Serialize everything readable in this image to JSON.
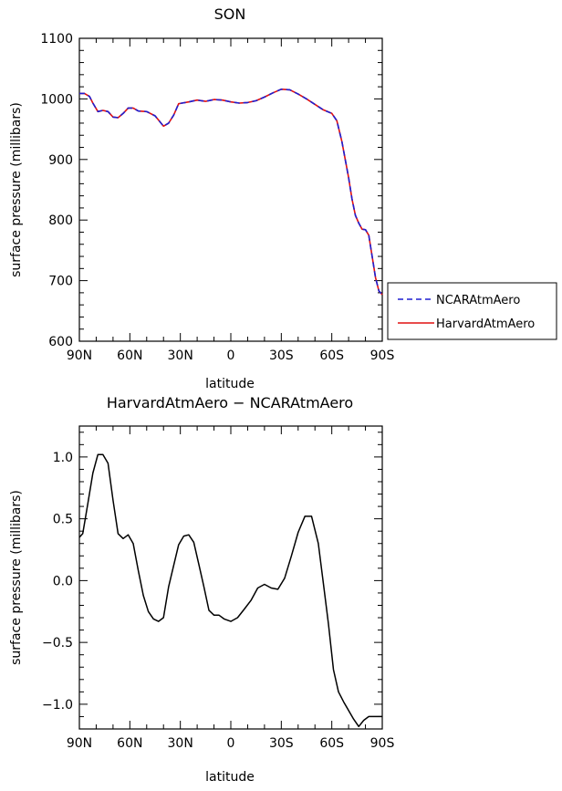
{
  "chart_data": [
    {
      "type": "line",
      "title": "SON",
      "xlabel": "latitude",
      "ylabel": "surface pressure (millibars)",
      "xlim": [
        90,
        -90
      ],
      "ylim": [
        600,
        1100
      ],
      "x_ticks": [
        90,
        60,
        30,
        0,
        -30,
        -60,
        -90
      ],
      "x_tick_labels": [
        "90N",
        "60N",
        "30N",
        "0",
        "30S",
        "60S",
        "90S"
      ],
      "y_ticks": [
        600,
        700,
        800,
        900,
        1000,
        1100
      ],
      "y_tick_labels": [
        "600",
        "700",
        "800",
        "900",
        "1000",
        "1100"
      ],
      "grid": false,
      "legend_position": "right",
      "legend": [
        {
          "name": "NCARAtmAero",
          "color": "#1f1fd0",
          "dash": true
        },
        {
          "name": "HarvardAtmAero",
          "color": "#e01010",
          "dash": false
        }
      ],
      "x": [
        90,
        87,
        84,
        82,
        79,
        76,
        73,
        70,
        67,
        64,
        61,
        58,
        55,
        50,
        45,
        40,
        37,
        34,
        31,
        29,
        25,
        20,
        15,
        10,
        5,
        0,
        -5,
        -10,
        -15,
        -20,
        -25,
        -30,
        -35,
        -40,
        -45,
        -50,
        -55,
        -60,
        -63,
        -66,
        -68,
        -70,
        -72,
        -74,
        -76,
        -78,
        -80,
        -82,
        -84,
        -86,
        -88,
        -90
      ],
      "series": [
        {
          "values": [
            1009,
            1009,
            1004,
            993,
            979,
            981,
            979,
            970,
            969,
            976,
            985,
            985,
            980,
            979,
            972,
            955,
            960,
            973,
            992,
            993,
            995,
            998,
            996,
            999,
            998,
            995,
            993,
            994,
            997,
            1003,
            1010,
            1016,
            1015,
            1008,
            1000,
            991,
            982,
            976,
            964,
            930,
            900,
            870,
            835,
            808,
            795,
            785,
            784,
            775,
            740,
            705,
            683,
            677
          ]
        },
        {
          "values": [
            1009,
            1009,
            1004,
            993,
            979,
            981,
            979,
            970,
            969,
            976,
            985,
            985,
            980,
            979,
            972,
            955,
            960,
            973,
            992,
            993,
            995,
            998,
            996,
            999,
            998,
            995,
            993,
            994,
            997,
            1003,
            1010,
            1016,
            1015,
            1008,
            1000,
            991,
            982,
            976,
            964,
            930,
            900,
            870,
            835,
            808,
            795,
            785,
            784,
            775,
            740,
            705,
            683,
            677
          ]
        }
      ]
    },
    {
      "type": "line",
      "title": "HarvardAtmAero − NCARAtmAero",
      "xlabel": "latitude",
      "ylabel": "surface pressure (millibars)",
      "xlim": [
        90,
        -90
      ],
      "ylim": [
        -1.2,
        1.25
      ],
      "x_ticks": [
        90,
        60,
        30,
        0,
        -30,
        -60,
        -90
      ],
      "x_tick_labels": [
        "90N",
        "60N",
        "30N",
        "0",
        "30S",
        "60S",
        "90S"
      ],
      "y_ticks": [
        -1.0,
        -0.5,
        0.0,
        0.5,
        1.0
      ],
      "y_tick_labels": [
        "−1.0",
        "−0.5",
        "0.0",
        "0.5",
        "1.0"
      ],
      "grid": false,
      "x": [
        90,
        88,
        85,
        82,
        79,
        76,
        73,
        70,
        67,
        64,
        61,
        58,
        55,
        52,
        49,
        46,
        43,
        40,
        37,
        34,
        31,
        28,
        25,
        22,
        19,
        16,
        13,
        10,
        7,
        4,
        0,
        -4,
        -8,
        -12,
        -16,
        -20,
        -24,
        -28,
        -32,
        -36,
        -40,
        -44,
        -48,
        -52,
        -55,
        -58,
        -61,
        -64,
        -67,
        -70,
        -73,
        -76,
        -79,
        -82,
        -85,
        -88,
        -90
      ],
      "series": [
        {
          "values": [
            0.35,
            0.38,
            0.62,
            0.87,
            1.02,
            1.02,
            0.95,
            0.65,
            0.38,
            0.34,
            0.37,
            0.3,
            0.08,
            -0.12,
            -0.25,
            -0.31,
            -0.33,
            -0.3,
            -0.05,
            0.12,
            0.29,
            0.36,
            0.37,
            0.31,
            0.13,
            -0.05,
            -0.24,
            -0.28,
            -0.28,
            -0.31,
            -0.33,
            -0.3,
            -0.23,
            -0.16,
            -0.06,
            -0.03,
            -0.06,
            -0.07,
            0.02,
            0.2,
            0.39,
            0.52,
            0.52,
            0.3,
            -0.02,
            -0.35,
            -0.72,
            -0.9,
            -0.98,
            -1.05,
            -1.12,
            -1.18,
            -1.13,
            -1.1,
            -1.1,
            -1.1,
            -1.1
          ]
        }
      ]
    }
  ]
}
